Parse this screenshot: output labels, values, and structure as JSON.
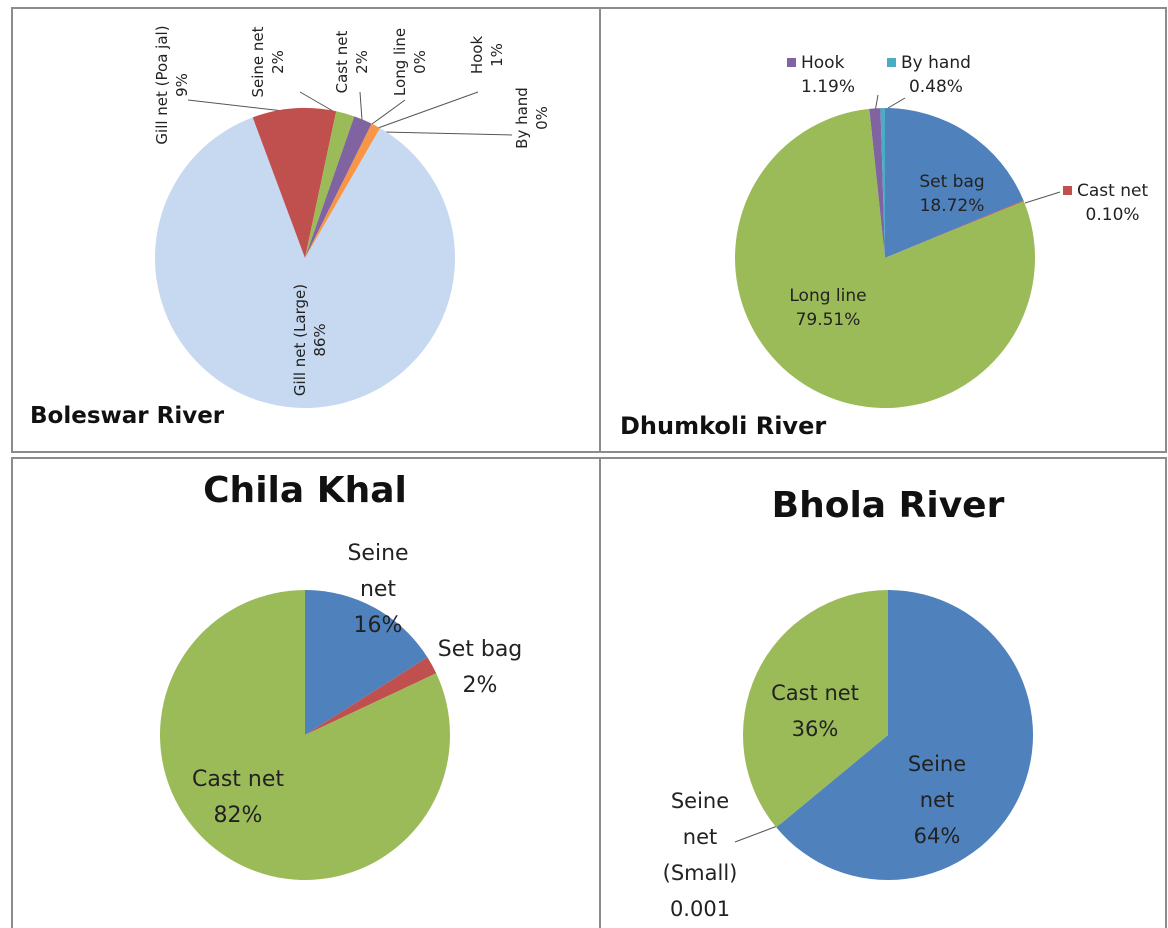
{
  "chart_data": [
    {
      "type": "pie",
      "title": "Boleswar River",
      "categories": [
        "Gill net (Large)",
        "Gill net (Poa jal)",
        "Seine net",
        "Cast net",
        "Long line",
        "Hook",
        "By hand"
      ],
      "values": [
        86,
        9,
        2,
        2,
        0,
        1,
        0
      ],
      "value_labels": [
        "86%",
        "9%",
        "2%",
        "2%",
        "0%",
        "1%",
        "0%"
      ],
      "colors": [
        "#c6d9f1",
        "#c0504d",
        "#9bbb59",
        "#8064a2",
        "#4bacc6",
        "#f79646",
        "#2c4d75"
      ]
    },
    {
      "type": "pie",
      "title": "Dhumkoli River",
      "categories": [
        "Set bag",
        "Cast net",
        "Long line",
        "Hook",
        "By hand"
      ],
      "values": [
        18.72,
        0.1,
        79.51,
        1.19,
        0.48
      ],
      "value_labels": [
        "18.72%",
        "0.10%",
        "79.51%",
        "1.19%",
        "0.48%"
      ],
      "colors": [
        "#4f81bd",
        "#c0504d",
        "#9bbb59",
        "#8064a2",
        "#4bacc6"
      ]
    },
    {
      "type": "pie",
      "title": "Chila Khal",
      "categories": [
        "Seine net",
        "Set bag",
        "Cast net"
      ],
      "values": [
        16,
        2,
        82
      ],
      "value_labels": [
        "16%",
        "2%",
        "82%"
      ],
      "colors": [
        "#4f81bd",
        "#c0504d",
        "#9bbb59"
      ]
    },
    {
      "type": "pie",
      "title": "Bhola River",
      "categories": [
        "Seine net",
        "Seine net (Small)",
        "Cast net"
      ],
      "values": [
        64,
        0.001,
        36
      ],
      "value_labels": [
        "64%",
        "0.001",
        "36%"
      ],
      "colors": [
        "#4f81bd",
        "#c0504d",
        "#9bbb59"
      ]
    }
  ]
}
